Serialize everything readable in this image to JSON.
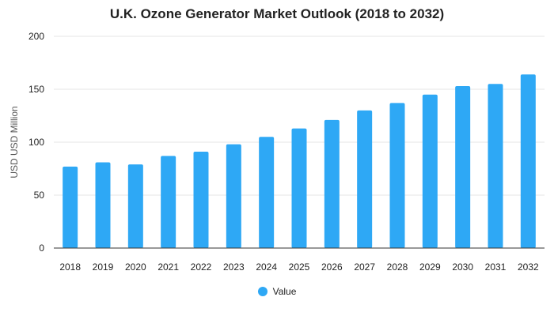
{
  "chart_data": {
    "type": "bar",
    "title": "U.K. Ozone Generator Market Outlook (2018 to 2032)",
    "xlabel": "",
    "ylabel": "USD USD Million",
    "categories": [
      "2018",
      "2019",
      "2020",
      "2021",
      "2022",
      "2023",
      "2024",
      "2025",
      "2026",
      "2027",
      "2028",
      "2029",
      "2030",
      "2031",
      "2032"
    ],
    "series": [
      {
        "name": "Value",
        "values": [
          77,
          81,
          79,
          87,
          91,
          98,
          105,
          113,
          121,
          130,
          137,
          145,
          153,
          155,
          164
        ]
      }
    ],
    "ylim": [
      0,
      200
    ],
    "yticks": [
      0,
      50,
      100,
      150,
      200
    ],
    "grid": true,
    "legend_position": "bottom",
    "colors": {
      "bar": "#2ea8f5",
      "grid": "#e6e6e6",
      "axis": "#333333"
    }
  }
}
